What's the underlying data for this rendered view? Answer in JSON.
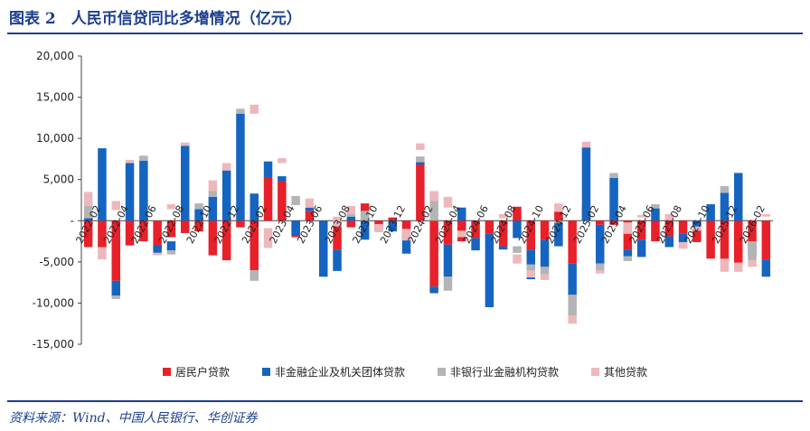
{
  "header": {
    "title": "图表 2　人民币信贷同比多增情况（亿元）"
  },
  "footer": {
    "source": "资料来源：Wind、中国人民银行、华创证券"
  },
  "colors": {
    "household": "#e8202a",
    "corporate": "#1565c0",
    "nonbank": "#b4b4b4",
    "other": "#ecb8bc"
  },
  "chart_data": {
    "type": "bar",
    "stacked": true,
    "ylim": [
      -15000,
      20000
    ],
    "yticks": [
      20000,
      15000,
      10000,
      5000,
      0,
      -5000,
      -10000,
      -15000
    ],
    "ytick_labels": [
      "20,000",
      "15,000",
      "10,000",
      "5,000",
      "-",
      "-5,000",
      "-10,000",
      "-15,000"
    ],
    "tick_labels": [
      {
        "index": 0,
        "label": "2022-02"
      },
      {
        "index": 2,
        "label": "2022-04"
      },
      {
        "index": 4,
        "label": "2022-06"
      },
      {
        "index": 6,
        "label": "2022-08"
      },
      {
        "index": 8,
        "label": "2022-10"
      },
      {
        "index": 10,
        "label": "2022-12"
      },
      {
        "index": 12,
        "label": "2023-02"
      },
      {
        "index": 14,
        "label": "2023-04"
      },
      {
        "index": 16,
        "label": "2023-06"
      },
      {
        "index": 18,
        "label": "2023-08"
      },
      {
        "index": 20,
        "label": "2023-10"
      },
      {
        "index": 22,
        "label": "2023-12"
      },
      {
        "index": 24,
        "label": "2024-02"
      },
      {
        "index": 26,
        "label": "2024-04"
      },
      {
        "index": 28,
        "label": "2024-06"
      },
      {
        "index": 30,
        "label": "2024-08"
      },
      {
        "index": 32,
        "label": "2024-10"
      },
      {
        "index": 34,
        "label": "2024-12"
      },
      {
        "index": 36,
        "label": "2025-02"
      },
      {
        "index": 38,
        "label": "2025-04"
      },
      {
        "index": 40,
        "label": "2025-06"
      },
      {
        "index": 42,
        "label": "2025-08"
      },
      {
        "index": 44,
        "label": "2025-10"
      },
      {
        "index": 46,
        "label": "2025-12"
      },
      {
        "index": 48,
        "label": "2026-02"
      }
    ],
    "legend_position": "bottom",
    "series": [
      {
        "name": "居民户贷款",
        "color": "#e8202a",
        "values": [
          -3200,
          -3400,
          -7300,
          -3000,
          -2500,
          -3500,
          -2000,
          -1500,
          -1300,
          -4200,
          -4800,
          -800,
          -6000,
          5300,
          4800,
          -2000,
          1200,
          -1000,
          -3500,
          -800,
          2100,
          -800,
          400,
          -1000,
          7100,
          -8000,
          -2900,
          -2500,
          -2100,
          -1600,
          -3100,
          1700,
          -3500,
          -2300,
          1100,
          -5200,
          1800,
          -500,
          -500,
          -3500,
          -2300,
          -2500,
          -1900,
          -1600,
          -2600,
          -4600,
          -5000,
          -5100,
          -2500,
          -4700
        ],
        "base": [
          0,
          0,
          0,
          0,
          0,
          0,
          0,
          0,
          0,
          0,
          0,
          0,
          0,
          0,
          0,
          0,
          0,
          0,
          0,
          0,
          0,
          0,
          0,
          0,
          0,
          0,
          0,
          0,
          0,
          0,
          0,
          0,
          0,
          0,
          0,
          0,
          0,
          0,
          0,
          0,
          0,
          0,
          0,
          0,
          0,
          0,
          0,
          0,
          0,
          0
        ]
      },
      {
        "name": "非金融企业及机关团体贷款",
        "color": "#1565c0",
        "values": [
          300,
          8800,
          -1800,
          7000,
          7300,
          -900,
          -1100,
          9100,
          1400,
          2900,
          6100,
          13000,
          3300,
          1900,
          600,
          -1800,
          400,
          -6800,
          -2600,
          500,
          -2300,
          -400,
          -1300,
          -3000,
          -300,
          -800,
          -3900,
          1600,
          -1500,
          -8900,
          -400,
          -2100,
          -3600,
          -3300,
          -3100,
          -3800,
          8900,
          -4700,
          5200,
          -800,
          -2100,
          1500,
          -1300,
          -1000,
          -1200,
          2000,
          3400,
          5800,
          -1800,
          -2100
        ],
        "base": [
          0,
          0,
          -7300,
          0,
          0,
          -3000,
          -2500,
          0,
          0,
          0,
          0,
          0,
          0,
          5300,
          4800,
          0,
          1200,
          0,
          -3500,
          0,
          0,
          -800,
          0,
          -1000,
          7100,
          -8000,
          -2900,
          0,
          -2100,
          -1600,
          -3100,
          0,
          -3500,
          -2300,
          0,
          -5200,
          0,
          -500,
          0,
          -3500,
          -2300,
          0,
          -1900,
          -1600,
          0,
          0,
          0,
          0,
          -2500,
          -4700
        ]
      },
      {
        "name": "非银行业金融机构贷款",
        "color": "#b4b4b4",
        "values": [
          1500,
          0,
          -400,
          0,
          600,
          0,
          -500,
          0,
          700,
          700,
          0,
          600,
          -1300,
          0,
          0,
          1100,
          0,
          0,
          0,
          300,
          1200,
          0,
          0,
          0,
          700,
          3500,
          -1700,
          0,
          0,
          0,
          0,
          -800,
          -700,
          -900,
          -300,
          -2500,
          0,
          -1200,
          600,
          -600,
          0,
          500,
          0,
          0,
          0,
          0,
          800,
          0,
          -2300,
          0
        ],
        "base": [
          300,
          0,
          -9100,
          0,
          7300,
          0,
          -3600,
          0,
          1400,
          2900,
          0,
          13000,
          -6000,
          0,
          0,
          1900,
          0,
          0,
          0,
          500,
          0,
          0,
          0,
          0,
          7100,
          0,
          -6800,
          0,
          0,
          0,
          0,
          -3100,
          -5300,
          -5600,
          0,
          -9000,
          0,
          -5200,
          5200,
          -4300,
          0,
          1500,
          0,
          0,
          0,
          0,
          3400,
          0,
          -2500,
          0
        ]
      },
      {
        "name": "其他贷款",
        "color": "#ecb8bc",
        "values": [
          1700,
          -1500,
          1100,
          400,
          0,
          -300,
          600,
          400,
          0,
          1300,
          900,
          0,
          1100,
          -2400,
          600,
          0,
          1100,
          0,
          1200,
          1000,
          0,
          -1000,
          0,
          -1400,
          800,
          -1200,
          1300,
          -800,
          0,
          0,
          500,
          -1100,
          -900,
          -700,
          1000,
          -1000,
          700,
          400,
          0,
          1400,
          300,
          0,
          700,
          -800,
          500,
          0,
          -1600,
          -1100,
          -800,
          300
        ],
        "base": [
          1800,
          -3200,
          1300,
          7000,
          7900,
          -3900,
          1400,
          9100,
          2100,
          3600,
          6100,
          13600,
          13000,
          -900,
          7000,
          3000,
          1600,
          0,
          -700,
          800,
          0,
          -400,
          300,
          -1000,
          8600,
          3600,
          1600,
          -1200,
          0,
          0,
          300,
          -4100,
          -6000,
          -6500,
          1100,
          -11500,
          8900,
          -6400,
          5800,
          -1600,
          400,
          2000,
          100,
          -2600,
          -1200,
          2000,
          -4600,
          -5100,
          -4800,
          500
        ]
      }
    ]
  }
}
